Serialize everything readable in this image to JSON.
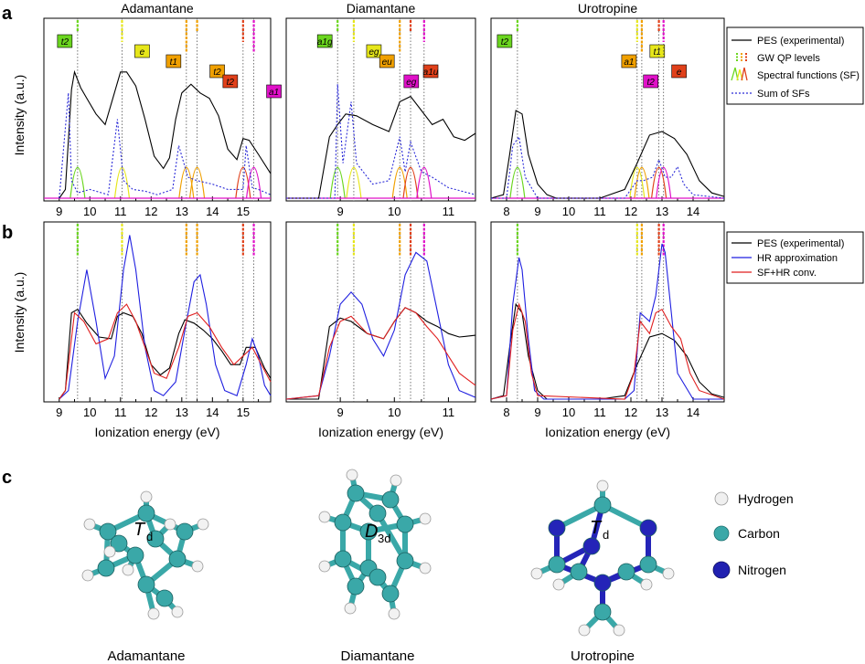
{
  "panel_letters": {
    "a": "a",
    "b": "b",
    "c": "c"
  },
  "molecules": [
    "Adamantane",
    "Diamantane",
    "Urotropine"
  ],
  "ylabel": "Intensity (a.u.)",
  "xlabel": "Ionization energy (eV)",
  "legend_a": [
    "PES (experimental)",
    "GW QP levels",
    "Spectral functions (SF)",
    "Sum of SFs"
  ],
  "legend_b": [
    "PES (experimental)",
    "HR approximation",
    "SF+HR conv."
  ],
  "legend_c": [
    "Hydrogen",
    "Carbon",
    "Nitrogen"
  ],
  "colors": {
    "pes": "#000000",
    "hr": "#1f1fe0",
    "sfhr": "#e01f1f",
    "sum": "#2b2bd8",
    "green": "#6bd61f",
    "yellow": "#e6e61a",
    "orange": "#f0a000",
    "red": "#e0401a",
    "magenta": "#e010c8",
    "hydrogen": "#f0f0f0",
    "carbon": "#3aa8a8",
    "nitrogen": "#2020b0"
  },
  "chart_data": [
    {
      "type": "line",
      "panel": "a",
      "title": "Adamantane",
      "xlabel": "",
      "ylabel": "Intensity (a.u.)",
      "xlim": [
        8.5,
        15.9
      ],
      "ylim": [
        0,
        1
      ],
      "xticks": [
        "9",
        "10",
        "11",
        "12",
        "13",
        "14",
        "15"
      ],
      "qp_levels": [
        {
          "label": "t2",
          "x": 9.6,
          "color": "green"
        },
        {
          "label": "e",
          "x": 11.05,
          "color": "yellow"
        },
        {
          "label": "t1",
          "x": 13.15,
          "color": "orange"
        },
        {
          "label": "t2",
          "x": 13.5,
          "color": "orange"
        },
        {
          "label": "t2",
          "x": 15.0,
          "color": "red"
        },
        {
          "label": "a1",
          "x": 15.35,
          "color": "magenta"
        }
      ],
      "series": [
        {
          "name": "PES (experimental)",
          "x": [
            9.0,
            9.2,
            9.4,
            9.5,
            9.7,
            9.9,
            10.2,
            10.5,
            10.8,
            11.0,
            11.2,
            11.5,
            11.8,
            12.1,
            12.4,
            12.6,
            12.8,
            13.0,
            13.3,
            13.6,
            13.9,
            14.2,
            14.5,
            14.8,
            15.0,
            15.2,
            15.5,
            15.9
          ],
          "y": [
            0.0,
            0.05,
            0.62,
            0.72,
            0.63,
            0.57,
            0.48,
            0.42,
            0.6,
            0.72,
            0.72,
            0.64,
            0.45,
            0.24,
            0.17,
            0.23,
            0.45,
            0.6,
            0.65,
            0.6,
            0.57,
            0.47,
            0.28,
            0.22,
            0.34,
            0.33,
            0.25,
            0.14
          ]
        },
        {
          "name": "Sum of SFs",
          "x": [
            9.0,
            9.3,
            9.4,
            9.6,
            10.0,
            10.6,
            10.9,
            11.1,
            11.4,
            11.8,
            12.2,
            12.7,
            12.9,
            13.2,
            13.5,
            14.0,
            14.5,
            15.0,
            15.1,
            15.3,
            15.5,
            15.9
          ],
          "y": [
            0.0,
            0.6,
            0.1,
            0.03,
            0.05,
            0.02,
            0.45,
            0.1,
            0.05,
            0.04,
            0.02,
            0.05,
            0.3,
            0.12,
            0.1,
            0.08,
            0.05,
            0.05,
            0.3,
            0.06,
            0.05,
            0.02
          ]
        }
      ]
    },
    {
      "type": "line",
      "panel": "a",
      "title": "Diamantane",
      "xlabel": "",
      "ylabel": "",
      "xlim": [
        8.0,
        11.5
      ],
      "ylim": [
        0,
        1
      ],
      "xticks": [
        "9",
        "10",
        "11"
      ],
      "qp_levels": [
        {
          "label": "a1g",
          "x": 8.95,
          "color": "green"
        },
        {
          "label": "eg",
          "x": 9.25,
          "color": "yellow"
        },
        {
          "label": "eu",
          "x": 10.1,
          "color": "orange"
        },
        {
          "label": "a1u",
          "x": 10.3,
          "color": "red"
        },
        {
          "label": "eg",
          "x": 10.55,
          "color": "magenta"
        }
      ],
      "series": [
        {
          "name": "PES (experimental)",
          "x": [
            8.0,
            8.6,
            8.8,
            8.95,
            9.1,
            9.3,
            9.6,
            9.9,
            10.1,
            10.3,
            10.5,
            10.7,
            10.9,
            11.1,
            11.3,
            11.5
          ],
          "y": [
            0.0,
            0.0,
            0.35,
            0.42,
            0.48,
            0.47,
            0.42,
            0.38,
            0.55,
            0.58,
            0.5,
            0.42,
            0.45,
            0.35,
            0.33,
            0.37
          ]
        },
        {
          "name": "Sum of SFs",
          "x": [
            8.0,
            8.9,
            8.95,
            9.05,
            9.2,
            9.3,
            9.6,
            9.9,
            10.1,
            10.2,
            10.3,
            10.5,
            10.7,
            11.0,
            11.5
          ],
          "y": [
            0.0,
            0.0,
            0.65,
            0.2,
            0.55,
            0.2,
            0.08,
            0.1,
            0.35,
            0.15,
            0.32,
            0.15,
            0.12,
            0.06,
            0.02
          ]
        }
      ]
    },
    {
      "type": "line",
      "panel": "a",
      "title": "Urotropine",
      "xlabel": "",
      "ylabel": "",
      "xlim": [
        7.5,
        15.0
      ],
      "ylim": [
        0,
        1
      ],
      "xticks": [
        "8",
        "9",
        "10",
        "11",
        "12",
        "13",
        "14"
      ],
      "qp_levels": [
        {
          "label": "t2",
          "x": 8.35,
          "color": "green"
        },
        {
          "label": "t1",
          "x": 12.2,
          "color": "yellow"
        },
        {
          "label": "a1",
          "x": 12.35,
          "color": "orange"
        },
        {
          "label": "e",
          "x": 12.9,
          "color": "red"
        },
        {
          "label": "t2",
          "x": 13.05,
          "color": "magenta"
        }
      ],
      "series": [
        {
          "name": "PES (experimental)",
          "x": [
            7.5,
            7.9,
            8.1,
            8.3,
            8.5,
            8.7,
            9.0,
            9.3,
            9.6,
            10.0,
            11.0,
            11.8,
            12.2,
            12.6,
            13.0,
            13.4,
            13.8,
            14.2,
            14.6,
            15.0
          ],
          "y": [
            0.0,
            0.02,
            0.25,
            0.5,
            0.48,
            0.25,
            0.08,
            0.02,
            0.0,
            0.0,
            0.0,
            0.05,
            0.2,
            0.36,
            0.38,
            0.34,
            0.25,
            0.1,
            0.03,
            0.01
          ]
        },
        {
          "name": "Sum of SFs",
          "x": [
            7.5,
            8.0,
            8.2,
            8.4,
            8.6,
            9.0,
            11.8,
            12.2,
            12.4,
            12.7,
            12.9,
            13.1,
            13.3,
            13.5,
            13.7,
            14.0,
            15.0
          ],
          "y": [
            0.0,
            0.0,
            0.3,
            0.35,
            0.12,
            0.0,
            0.0,
            0.1,
            0.1,
            0.12,
            0.22,
            0.12,
            0.12,
            0.18,
            0.08,
            0.02,
            0.0
          ]
        }
      ]
    },
    {
      "type": "line",
      "panel": "b",
      "title": "Adamantane",
      "xlabel": "Ionization energy (eV)",
      "ylabel": "Intensity (a.u.)",
      "xlim": [
        8.5,
        15.9
      ],
      "ylim": [
        0,
        1
      ],
      "xticks": [
        "9",
        "10",
        "11",
        "12",
        "13",
        "14",
        "15"
      ],
      "series": [
        {
          "name": "PES (experimental)",
          "x": [
            9.0,
            9.2,
            9.4,
            9.6,
            9.9,
            10.3,
            10.7,
            10.9,
            11.1,
            11.4,
            11.7,
            12.0,
            12.3,
            12.6,
            12.9,
            13.1,
            13.4,
            13.7,
            14.0,
            14.3,
            14.6,
            14.9,
            15.1,
            15.4,
            15.7,
            15.9
          ],
          "y": [
            0.0,
            0.05,
            0.5,
            0.52,
            0.44,
            0.36,
            0.35,
            0.48,
            0.5,
            0.48,
            0.38,
            0.2,
            0.14,
            0.18,
            0.38,
            0.46,
            0.44,
            0.4,
            0.35,
            0.28,
            0.2,
            0.2,
            0.3,
            0.3,
            0.18,
            0.12
          ]
        },
        {
          "name": "HR approximation",
          "x": [
            9.0,
            9.3,
            9.6,
            9.9,
            10.2,
            10.5,
            10.8,
            11.1,
            11.3,
            11.5,
            11.8,
            12.1,
            12.4,
            12.8,
            13.1,
            13.4,
            13.6,
            13.8,
            14.1,
            14.4,
            14.8,
            15.1,
            15.3,
            15.5,
            15.7,
            15.9
          ],
          "y": [
            0.0,
            0.05,
            0.45,
            0.75,
            0.45,
            0.12,
            0.25,
            0.75,
            0.95,
            0.75,
            0.3,
            0.05,
            0.02,
            0.1,
            0.4,
            0.68,
            0.72,
            0.55,
            0.2,
            0.05,
            0.02,
            0.2,
            0.35,
            0.25,
            0.08,
            0.02
          ]
        },
        {
          "name": "SF+HR conv.",
          "x": [
            9.0,
            9.2,
            9.5,
            9.8,
            10.2,
            10.6,
            10.9,
            11.2,
            11.5,
            11.8,
            12.1,
            12.5,
            12.9,
            13.2,
            13.5,
            13.9,
            14.3,
            14.7,
            15.0,
            15.3,
            15.6,
            15.9
          ],
          "y": [
            0.0,
            0.05,
            0.5,
            0.45,
            0.32,
            0.35,
            0.5,
            0.55,
            0.45,
            0.3,
            0.15,
            0.12,
            0.3,
            0.48,
            0.5,
            0.42,
            0.3,
            0.2,
            0.25,
            0.3,
            0.2,
            0.1
          ]
        }
      ]
    },
    {
      "type": "line",
      "panel": "b",
      "title": "Diamantane",
      "xlabel": "Ionization energy (eV)",
      "ylabel": "",
      "xlim": [
        8.0,
        11.5
      ],
      "ylim": [
        0,
        1
      ],
      "xticks": [
        "9",
        "10",
        "11"
      ],
      "series": [
        {
          "name": "PES (experimental)",
          "x": [
            8.0,
            8.6,
            8.8,
            9.0,
            9.2,
            9.5,
            9.8,
            10.0,
            10.2,
            10.4,
            10.6,
            10.8,
            11.0,
            11.2,
            11.5
          ],
          "y": [
            0.0,
            0.0,
            0.42,
            0.47,
            0.45,
            0.38,
            0.35,
            0.45,
            0.53,
            0.5,
            0.45,
            0.42,
            0.38,
            0.36,
            0.37
          ]
        },
        {
          "name": "HR approximation",
          "x": [
            8.0,
            8.6,
            8.8,
            9.0,
            9.2,
            9.4,
            9.6,
            9.8,
            10.0,
            10.2,
            10.4,
            10.6,
            10.8,
            11.0,
            11.2,
            11.5
          ],
          "y": [
            0.0,
            0.02,
            0.25,
            0.55,
            0.62,
            0.55,
            0.35,
            0.25,
            0.4,
            0.72,
            0.85,
            0.8,
            0.5,
            0.2,
            0.05,
            0.01
          ]
        },
        {
          "name": "SF+HR conv.",
          "x": [
            8.0,
            8.6,
            8.8,
            9.0,
            9.2,
            9.5,
            9.8,
            10.0,
            10.2,
            10.4,
            10.6,
            10.8,
            11.0,
            11.2,
            11.5
          ],
          "y": [
            0.0,
            0.02,
            0.3,
            0.45,
            0.48,
            0.38,
            0.35,
            0.45,
            0.53,
            0.5,
            0.42,
            0.35,
            0.25,
            0.15,
            0.08
          ]
        }
      ]
    },
    {
      "type": "line",
      "panel": "b",
      "title": "Urotropine",
      "xlabel": "Ionization energy (eV)",
      "ylabel": "",
      "xlim": [
        7.5,
        15.0
      ],
      "ylim": [
        0,
        1
      ],
      "xticks": [
        "8",
        "9",
        "10",
        "11",
        "12",
        "13",
        "14"
      ],
      "series": [
        {
          "name": "PES (experimental)",
          "x": [
            7.5,
            7.9,
            8.1,
            8.3,
            8.5,
            8.7,
            9.0,
            9.3,
            9.6,
            11.0,
            11.8,
            12.2,
            12.6,
            13.0,
            13.4,
            13.8,
            14.2,
            14.6,
            15.0
          ],
          "y": [
            0.0,
            0.02,
            0.3,
            0.55,
            0.5,
            0.25,
            0.05,
            0.0,
            0.0,
            0.0,
            0.02,
            0.2,
            0.36,
            0.38,
            0.34,
            0.25,
            0.1,
            0.03,
            0.01
          ]
        },
        {
          "name": "HR approximation",
          "x": [
            7.5,
            8.0,
            8.2,
            8.4,
            8.5,
            8.7,
            8.9,
            9.2,
            11.8,
            12.1,
            12.3,
            12.6,
            12.8,
            13.0,
            13.1,
            13.3,
            13.5,
            14.0,
            15.0
          ],
          "y": [
            0.0,
            0.02,
            0.55,
            0.82,
            0.75,
            0.35,
            0.05,
            0.0,
            0.0,
            0.05,
            0.5,
            0.45,
            0.6,
            0.9,
            0.85,
            0.5,
            0.15,
            0.0,
            0.0
          ]
        },
        {
          "name": "SF+HR conv.",
          "x": [
            7.5,
            8.0,
            8.2,
            8.4,
            8.6,
            8.8,
            9.0,
            11.8,
            12.1,
            12.3,
            12.6,
            12.8,
            13.0,
            13.3,
            13.6,
            13.9,
            14.2,
            15.0
          ],
          "y": [
            0.0,
            0.02,
            0.4,
            0.55,
            0.45,
            0.15,
            0.02,
            0.0,
            0.15,
            0.45,
            0.38,
            0.5,
            0.52,
            0.42,
            0.35,
            0.15,
            0.05,
            0.0
          ]
        }
      ]
    }
  ]
}
